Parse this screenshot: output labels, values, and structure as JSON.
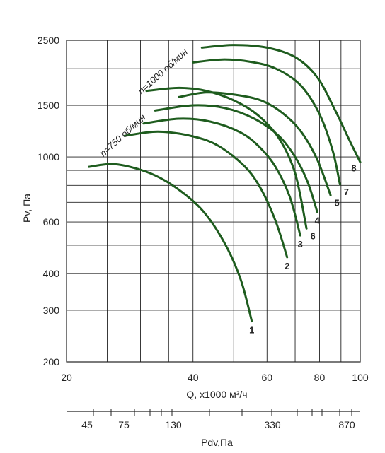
{
  "chart_data": {
    "type": "line",
    "xlabel": "Q, x1000 м³/ч",
    "ylabel": "Pv, Па",
    "x_scale": "log",
    "y_scale": "log",
    "xlim": [
      20,
      100
    ],
    "ylim": [
      200,
      2500
    ],
    "x_ticks": [
      "20",
      "40",
      "60",
      "80",
      "100"
    ],
    "y_ticks": [
      "2500",
      "1500",
      "1000",
      "600",
      "400",
      "300",
      "200"
    ],
    "grid": true,
    "secondary_axis": {
      "label": "Pdv,Па",
      "ticks": [
        "45",
        "75",
        "130",
        "330",
        "870"
      ]
    },
    "speed_annotations": [
      "n=750 об/мин",
      "n=1000 об/мин"
    ],
    "series": [
      {
        "name": "1",
        "points": [
          [
            22.6,
            925
          ],
          [
            26.0,
            945
          ],
          [
            31.0,
            890
          ],
          [
            36.0,
            795
          ],
          [
            42.0,
            660
          ],
          [
            47.5,
            510
          ],
          [
            52.0,
            380
          ],
          [
            55.2,
            275
          ]
        ]
      },
      {
        "name": "2",
        "points": [
          [
            27.5,
            1180
          ],
          [
            33.0,
            1220
          ],
          [
            40.0,
            1175
          ],
          [
            46.0,
            1090
          ],
          [
            53.0,
            930
          ],
          [
            58.0,
            780
          ],
          [
            63.0,
            600
          ],
          [
            67.0,
            455
          ]
        ]
      },
      {
        "name": "3",
        "points": [
          [
            30.5,
            1300
          ],
          [
            37.0,
            1350
          ],
          [
            44.0,
            1320
          ],
          [
            52.0,
            1210
          ],
          [
            58.0,
            1070
          ],
          [
            63.0,
            920
          ],
          [
            68.0,
            730
          ],
          [
            72.0,
            540
          ]
        ]
      },
      {
        "name": "4",
        "points": [
          [
            32.5,
            1440
          ],
          [
            40.0,
            1500
          ],
          [
            47.5,
            1470
          ],
          [
            56.0,
            1350
          ],
          [
            64.0,
            1180
          ],
          [
            70.0,
            1000
          ],
          [
            75.0,
            820
          ],
          [
            79.0,
            650
          ]
        ]
      },
      {
        "name": "5",
        "points": [
          [
            37.0,
            1600
          ],
          [
            43.0,
            1660
          ],
          [
            50.5,
            1630
          ],
          [
            58.0,
            1560
          ],
          [
            65.0,
            1420
          ],
          [
            72.0,
            1230
          ],
          [
            79.0,
            980
          ],
          [
            85.0,
            740
          ]
        ]
      },
      {
        "name": "6",
        "points": [
          [
            31.0,
            1680
          ],
          [
            37.0,
            1720
          ],
          [
            43.0,
            1680
          ],
          [
            50.0,
            1560
          ],
          [
            57.0,
            1390
          ],
          [
            64.0,
            1160
          ],
          [
            70.0,
            880
          ],
          [
            74.5,
            570
          ]
        ]
      },
      {
        "name": "7",
        "points": [
          [
            40.0,
            2100
          ],
          [
            47.0,
            2150
          ],
          [
            55.0,
            2110
          ],
          [
            63.0,
            2000
          ],
          [
            72.0,
            1760
          ],
          [
            80.0,
            1400
          ],
          [
            86.0,
            1050
          ],
          [
            89.5,
            805
          ]
        ]
      },
      {
        "name": "8",
        "points": [
          [
            42.0,
            2360
          ],
          [
            50.0,
            2410
          ],
          [
            60.0,
            2360
          ],
          [
            70.0,
            2190
          ],
          [
            79.0,
            1870
          ],
          [
            87.0,
            1450
          ],
          [
            94.0,
            1150
          ],
          [
            100.0,
            960
          ]
        ]
      }
    ],
    "curve_color": "#1e5c1e"
  }
}
